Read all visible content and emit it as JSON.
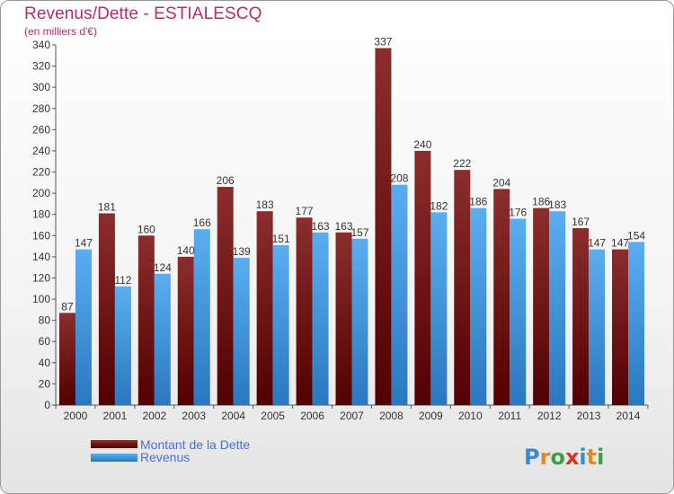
{
  "title": "Revenus/Dette - ESTIALESCQ",
  "subtitle": "(en milliers d'€)",
  "logo": "Proxiti",
  "colors": {
    "dette_top": "#8b2d2d",
    "dette_bottom": "#520000",
    "revenus_top": "#5aaef0",
    "revenus_bottom": "#2a78c0",
    "label": "#333333"
  },
  "chart_data": {
    "type": "bar",
    "title": "Revenus/Dette - ESTIALESCQ",
    "ylabel": "(en milliers d'€)",
    "xlabel": "",
    "ylim": [
      0,
      340
    ],
    "yticks": [
      0,
      20,
      40,
      60,
      80,
      100,
      120,
      140,
      160,
      180,
      200,
      220,
      240,
      260,
      280,
      300,
      320,
      340
    ],
    "grid": false,
    "legend_position": "bottom-left",
    "categories": [
      "2000",
      "2001",
      "2002",
      "2003",
      "2004",
      "2005",
      "2006",
      "2007",
      "2008",
      "2009",
      "2010",
      "2011",
      "2012",
      "2013",
      "2014"
    ],
    "series": [
      {
        "name": "Montant de la Dette",
        "values": [
          87,
          181,
          160,
          140,
          206,
          183,
          177,
          163,
          337,
          240,
          222,
          204,
          186,
          167,
          147
        ]
      },
      {
        "name": "Revenus",
        "values": [
          147,
          112,
          124,
          166,
          139,
          151,
          163,
          157,
          208,
          182,
          186,
          176,
          183,
          147,
          154
        ]
      }
    ]
  }
}
